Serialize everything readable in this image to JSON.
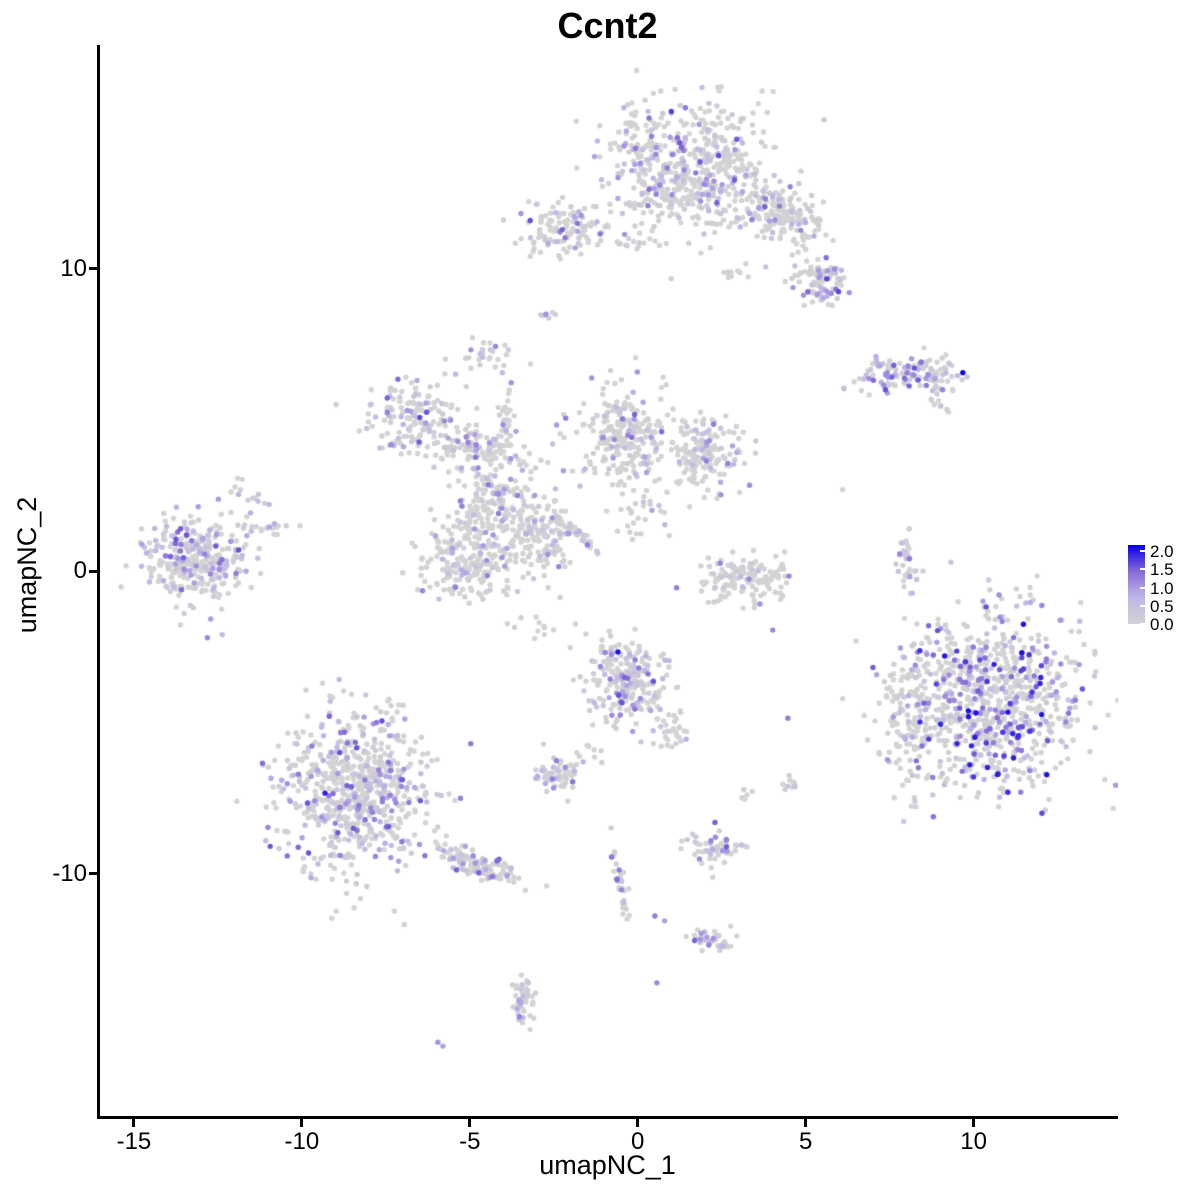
{
  "chart_data": {
    "type": "scatter",
    "title": "Ccnt2",
    "xlabel": "umapNC_1",
    "ylabel": "umapNC_2",
    "xlim": [
      -16.1,
      14.3
    ],
    "ylim": [
      -18.1,
      17.4
    ],
    "x_ticks": [
      -15,
      -10,
      -5,
      0,
      5,
      10
    ],
    "x_tick_labels": [
      "-15",
      "-10",
      "-5",
      "0",
      "5",
      "10"
    ],
    "y_ticks": [
      -10,
      0,
      10
    ],
    "y_tick_labels": [
      "-10",
      "0",
      "10"
    ],
    "grid": false,
    "legend_position": "right",
    "point_radius": 2.7,
    "seed": 1337,
    "color_scale": {
      "domain": [
        0,
        2
      ],
      "low": "#d3d3d3",
      "high": "#0800e8",
      "stops": [
        [
          0,
          "#d3d3d3"
        ],
        [
          0.35,
          "#beb4e6"
        ],
        [
          0.65,
          "#8a6fd8"
        ],
        [
          1,
          "#0800e8"
        ]
      ]
    },
    "legend": {
      "values": [
        2.0,
        1.5,
        1.0,
        0.5,
        0.0
      ],
      "labels": [
        "2.0",
        "1.5",
        "1.0",
        "0.5",
        "0.0"
      ]
    },
    "clusters": [
      {
        "name": "top-main",
        "x": 1.49,
        "y": 13.33,
        "sx": 1.15,
        "sy": 1.1,
        "rot": 0,
        "n": 550,
        "f": 0.28,
        "vm": 1.5
      },
      {
        "name": "top-arm",
        "x": 4.23,
        "y": 11.78,
        "sx": 0.75,
        "sy": 0.45,
        "rot": -30,
        "n": 170,
        "f": 0.3,
        "vm": 1.4
      },
      {
        "name": "top-arm-blob",
        "x": 5.42,
        "y": 9.57,
        "sx": 0.4,
        "sy": 0.4,
        "rot": 0,
        "n": 90,
        "f": 0.5,
        "vm": 1.6
      },
      {
        "name": "top-dash",
        "x": 3.01,
        "y": 9.9,
        "sx": 0.33,
        "sy": 0.1,
        "rot": 0,
        "n": 10,
        "f": 0.05,
        "vm": 0.5
      },
      {
        "name": "top-left-mini",
        "x": -2.17,
        "y": 11.29,
        "sx": 0.7,
        "sy": 0.45,
        "rot": 0,
        "n": 110,
        "f": 0.3,
        "vm": 1.5
      },
      {
        "name": "mini-dash",
        "x": -0.08,
        "y": 10.79,
        "sx": 0.3,
        "sy": 0.1,
        "rot": 0,
        "n": 10,
        "f": 0.1,
        "vm": 0.6
      },
      {
        "name": "pair-mid-top",
        "x": -2.76,
        "y": 8.48,
        "sx": 0.15,
        "sy": 0.12,
        "rot": 0,
        "n": 5,
        "f": 0.3,
        "vm": 1.0
      },
      {
        "name": "clump-small",
        "x": -4.49,
        "y": 7.22,
        "sx": 0.35,
        "sy": 0.3,
        "rot": -20,
        "n": 28,
        "f": 0.6,
        "vm": 1.2
      },
      {
        "name": "left-wing",
        "x": -6.63,
        "y": 5.17,
        "sx": 0.7,
        "sy": 0.58,
        "rot": -10,
        "n": 150,
        "f": 0.3,
        "vm": 1.5
      },
      {
        "name": "wing-bridge",
        "x": -4.7,
        "y": 4.11,
        "sx": 0.67,
        "sy": 0.37,
        "rot": -10,
        "n": 110,
        "f": 0.35,
        "vm": 1.3
      },
      {
        "name": "strand-vertical",
        "x": -3.95,
        "y": 4.67,
        "sx": 0.1,
        "sy": 0.72,
        "rot": 0,
        "n": 30,
        "f": 0.3,
        "vm": 1.3
      },
      {
        "name": "sparse-mid-top",
        "x": -1.42,
        "y": 3.68,
        "sx": 0.8,
        "sy": 0.7,
        "rot": 0,
        "n": 40,
        "f": 0.2,
        "vm": 1.0
      },
      {
        "name": "central-a",
        "x": -4.25,
        "y": 2.19,
        "sx": 0.7,
        "sy": 0.66,
        "rot": 0,
        "n": 170,
        "f": 0.25,
        "vm": 1.3
      },
      {
        "name": "central-b",
        "x": -5.0,
        "y": 0.38,
        "sx": 0.74,
        "sy": 0.74,
        "rot": 0,
        "n": 220,
        "f": 0.25,
        "vm": 1.3
      },
      {
        "name": "central-c",
        "x": -2.91,
        "y": 1.04,
        "sx": 0.52,
        "sy": 0.58,
        "rot": 0,
        "n": 120,
        "f": 0.25,
        "vm": 1.2
      },
      {
        "name": "streak-diagonal",
        "x": -1.87,
        "y": 1.3,
        "sx": 0.45,
        "sy": 0.08,
        "rot": -38,
        "n": 40,
        "f": 0.5,
        "vm": 1.2
      },
      {
        "name": "triangle",
        "x": -0.38,
        "y": 4.67,
        "sx": 0.6,
        "sy": 0.83,
        "rot": 0,
        "n": 200,
        "f": 0.25,
        "vm": 1.4
      },
      {
        "name": "triangle-arm",
        "x": 1.85,
        "y": 3.85,
        "sx": 0.63,
        "sy": 0.58,
        "rot": 0,
        "n": 170,
        "f": 0.3,
        "vm": 1.4
      },
      {
        "name": "bridge-lower",
        "x": 0.07,
        "y": 1.86,
        "sx": 0.55,
        "sy": 0.4,
        "rot": 0,
        "n": 30,
        "f": 0.2,
        "vm": 1.0
      },
      {
        "name": "c-smile",
        "x": 3.19,
        "y": -0.28,
        "sx": 0.7,
        "sy": 0.4,
        "rot": 5,
        "n": 140,
        "f": 0.12,
        "vm": 1.2
      },
      {
        "name": "strand-right",
        "x": 7.95,
        "y": 0.38,
        "sx": 0.12,
        "sy": 0.6,
        "rot": 0,
        "n": 32,
        "f": 0.35,
        "vm": 1.5
      },
      {
        "name": "fish",
        "x": 8.16,
        "y": 6.49,
        "sx": 0.9,
        "sy": 0.3,
        "rot": 0,
        "n": 120,
        "f": 0.55,
        "vm": 1.5
      },
      {
        "name": "fish-tail",
        "x": 8.85,
        "y": 5.73,
        "sx": 0.25,
        "sy": 0.08,
        "rot": -50,
        "n": 10,
        "f": 0.5,
        "vm": 1.2
      },
      {
        "name": "bottom-right",
        "x": 10.63,
        "y": -4.25,
        "sx": 1.37,
        "sy": 1.44,
        "rot": 0,
        "n": 850,
        "f": 0.45,
        "vm": 1.9
      },
      {
        "name": "br-left-scatter",
        "x": 8.1,
        "y": -5.08,
        "sx": 0.4,
        "sy": 1.15,
        "rot": 0,
        "n": 100,
        "f": 0.3,
        "vm": 1.4
      },
      {
        "name": "mid-bottom",
        "x": -0.38,
        "y": -3.59,
        "sx": 0.63,
        "sy": 0.7,
        "rot": 0,
        "n": 230,
        "f": 0.35,
        "vm": 1.5
      },
      {
        "name": "mid-bottom-tail",
        "x": 0.9,
        "y": -5.24,
        "sx": 0.35,
        "sy": 0.3,
        "rot": -40,
        "n": 30,
        "f": 0.25,
        "vm": 1.0
      },
      {
        "name": "link-small",
        "x": -2.32,
        "y": -6.73,
        "sx": 0.37,
        "sy": 0.33,
        "rot": 0,
        "n": 60,
        "f": 0.5,
        "vm": 1.3
      },
      {
        "name": "link-dots",
        "x": -1.42,
        "y": -5.97,
        "sx": 0.2,
        "sy": 0.15,
        "rot": 0,
        "n": 8,
        "f": 0.3,
        "vm": 1.0
      },
      {
        "name": "bottom-left",
        "x": -8.42,
        "y": -7.39,
        "sx": 1.07,
        "sy": 1.3,
        "rot": 0,
        "n": 680,
        "f": 0.4,
        "vm": 1.5
      },
      {
        "name": "bl-tail",
        "x": -4.85,
        "y": -9.7,
        "sx": 0.75,
        "sy": 0.2,
        "rot": -22,
        "n": 130,
        "f": 0.35,
        "vm": 1.4
      },
      {
        "name": "streak-bottom",
        "x": -0.53,
        "y": -10.2,
        "sx": 0.08,
        "sy": 0.8,
        "rot": 10,
        "n": 34,
        "f": 0.45,
        "vm": 1.4
      },
      {
        "name": "small-jelly",
        "x": 2.3,
        "y": -9.21,
        "sx": 0.4,
        "sy": 0.28,
        "rot": 0,
        "n": 55,
        "f": 0.6,
        "vm": 1.5
      },
      {
        "name": "elongated-bottom",
        "x": 2.15,
        "y": -12.19,
        "sx": 0.31,
        "sy": 0.25,
        "rot": -20,
        "n": 40,
        "f": 0.55,
        "vm": 1.4
      },
      {
        "name": "vertical-small",
        "x": -3.36,
        "y": -14.17,
        "sx": 0.18,
        "sy": 0.45,
        "rot": 0,
        "n": 42,
        "f": 0.4,
        "vm": 1.2
      },
      {
        "name": "left-main",
        "x": -13.18,
        "y": 0.38,
        "sx": 0.71,
        "sy": 0.74,
        "rot": 0,
        "n": 320,
        "f": 0.38,
        "vm": 1.5
      },
      {
        "name": "left-arm-up",
        "x": -11.55,
        "y": 2.53,
        "sx": 0.35,
        "sy": 0.2,
        "rot": -35,
        "n": 14,
        "f": 0.5,
        "vm": 1.2
      },
      {
        "name": "left-arm-mid",
        "x": -10.95,
        "y": 1.43,
        "sx": 0.45,
        "sy": 0.12,
        "rot": 0,
        "n": 20,
        "f": 0.35,
        "vm": 1.0
      },
      {
        "name": "sparse-connect",
        "x": -2.76,
        "y": -1.87,
        "sx": 0.6,
        "sy": 0.25,
        "rot": 0,
        "n": 12,
        "f": 0.15,
        "vm": 0.8
      },
      {
        "name": "pair-southeast",
        "x": 4.68,
        "y": -7.06,
        "sx": 0.22,
        "sy": 0.15,
        "rot": 0,
        "n": 9,
        "f": 0.4,
        "vm": 1.3
      },
      {
        "name": "near-pair",
        "x": 3.25,
        "y": -7.39,
        "sx": 0.1,
        "sy": 0.1,
        "rot": 0,
        "n": 5,
        "f": 0.3,
        "vm": 0.8
      }
    ],
    "accent_points": [
      {
        "x": 9.68,
        "y": 6.57,
        "v": 2.0
      },
      {
        "x": -0.59,
        "y": -2.66,
        "v": 1.9
      },
      {
        "x": -9.31,
        "y": -7.33,
        "v": 1.8
      },
      {
        "x": 11.44,
        "y": -2.69,
        "v": 1.9
      },
      {
        "x": 1.0,
        "y": 15.2,
        "v": 1.6
      },
      {
        "x": -3.2,
        "y": 11.6,
        "v": 1.5
      },
      {
        "x": 4.02,
        "y": -1.94,
        "v": 1.1
      },
      {
        "x": 2.48,
        "y": 2.53,
        "v": 1.0
      },
      {
        "x": 4.47,
        "y": -4.85,
        "v": 1.2
      },
      {
        "x": 2.3,
        "y": -8.3,
        "v": 1.4
      },
      {
        "x": 0.51,
        "y": -11.39,
        "v": 1.2
      },
      {
        "x": 0.8,
        "y": -11.55,
        "v": 0.9
      },
      {
        "x": 0.57,
        "y": -13.6,
        "v": 1.1
      },
      {
        "x": -5.95,
        "y": -15.56,
        "v": 1.0
      },
      {
        "x": -5.8,
        "y": -15.69,
        "v": 0.9
      },
      {
        "x": -2.73,
        "y": 8.5,
        "v": 1.0
      },
      {
        "x": 6.1,
        "y": 2.7,
        "v": 0.0
      },
      {
        "x": 8.64,
        "y": -2.2,
        "v": 0.0
      },
      {
        "x": 6.5,
        "y": -2.3,
        "v": 0.0
      }
    ]
  }
}
